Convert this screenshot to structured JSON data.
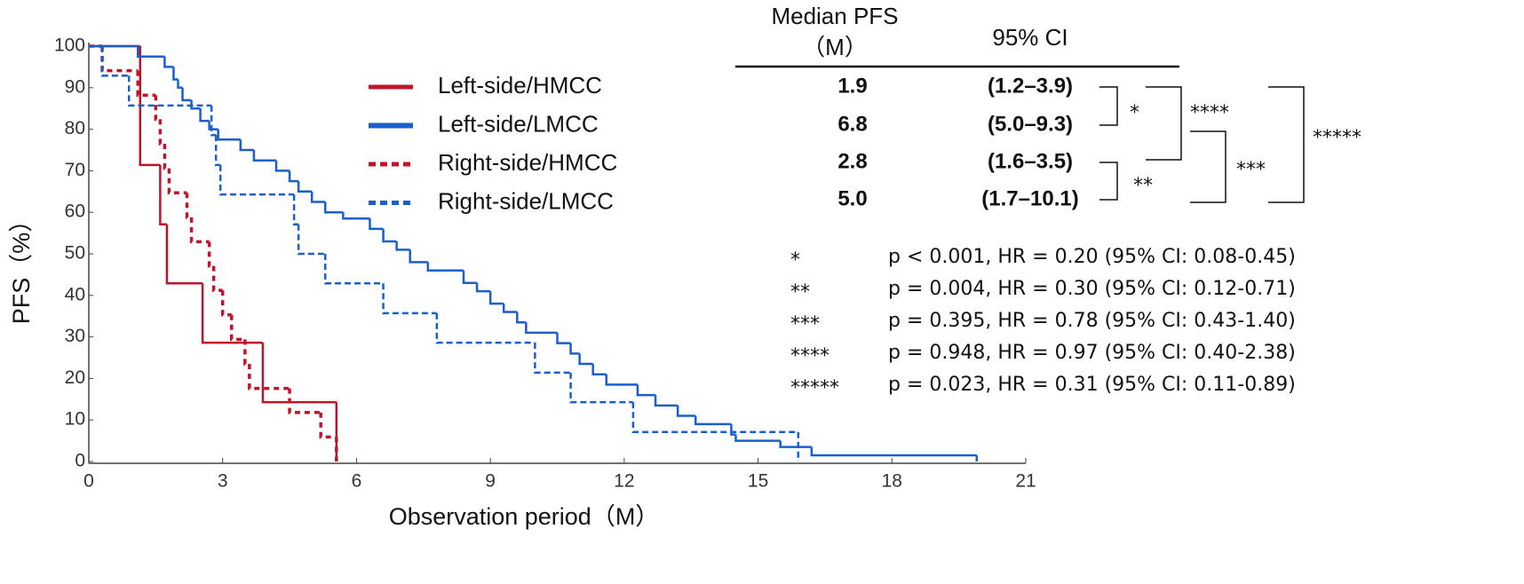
{
  "chart_data": {
    "type": "step",
    "xlabel": "Observation period（M）",
    "ylabel": "PFS（%）",
    "xlim": [
      0,
      21
    ],
    "xticks": [
      0,
      3,
      6,
      9,
      12,
      15,
      18,
      21
    ],
    "ylim": [
      0,
      100
    ],
    "yticks": [
      0,
      10,
      20,
      30,
      40,
      50,
      60,
      70,
      80,
      90,
      100
    ],
    "series": [
      {
        "name": "Left-side/HMCC",
        "color": "#c0142a",
        "style": "solid",
        "x": [
          0,
          1.15,
          1.6,
          1.75,
          2.55,
          3.9,
          5.55
        ],
        "values": [
          100,
          71.4,
          57.1,
          42.9,
          28.6,
          14.3,
          0
        ]
      },
      {
        "name": "Left-side/LMCC",
        "color": "#1a5fcc",
        "style": "solid",
        "x": [
          0,
          1.1,
          1.7,
          1.9,
          2.0,
          2.1,
          2.3,
          2.5,
          2.7,
          2.9,
          3.4,
          3.7,
          4.2,
          4.5,
          4.7,
          5.0,
          5.3,
          5.7,
          6.3,
          6.6,
          6.9,
          7.2,
          7.6,
          8.4,
          8.7,
          9.0,
          9.3,
          9.6,
          9.8,
          10.5,
          10.8,
          11.0,
          11.3,
          11.6,
          12.3,
          12.7,
          13.2,
          13.6,
          14.4,
          14.5,
          15.5,
          16.2,
          19.9
        ],
        "values": [
          100,
          97.5,
          95,
          92,
          90,
          87,
          85,
          82,
          80,
          77.5,
          75,
          72.5,
          70,
          67.5,
          65,
          62.5,
          60,
          58.5,
          56,
          53,
          51,
          48,
          46,
          43,
          41,
          38,
          36,
          33.5,
          31,
          28.5,
          26,
          23.5,
          21,
          18.5,
          16,
          13.5,
          11,
          9,
          6.5,
          5,
          3.5,
          1.5,
          0
        ]
      },
      {
        "name": "Right-side/HMCC",
        "color": "#c0142a",
        "style": "dotted",
        "x": [
          0,
          0.3,
          1.1,
          1.5,
          1.6,
          1.7,
          1.8,
          2.2,
          2.3,
          2.7,
          2.8,
          3.0,
          3.2,
          3.5,
          3.6,
          4.5,
          5.2,
          5.55
        ],
        "values": [
          100,
          94.1,
          88.2,
          82.4,
          76.5,
          70.6,
          64.7,
          58.8,
          52.9,
          47.1,
          41.2,
          35.3,
          29.4,
          23.5,
          17.6,
          11.8,
          5.9,
          0
        ]
      },
      {
        "name": "Right-side/LMCC",
        "color": "#1a5fcc",
        "style": "dashed",
        "x": [
          0,
          0.3,
          0.9,
          2.75,
          2.85,
          2.95,
          4.6,
          4.7,
          5.3,
          6.6,
          7.8,
          10.0,
          10.8,
          12.2,
          15.9
        ],
        "values": [
          100,
          92.9,
          85.7,
          78.6,
          71.4,
          64.3,
          57.1,
          50,
          42.9,
          35.7,
          28.6,
          21.4,
          14.3,
          7.1,
          0
        ]
      }
    ],
    "table": {
      "headers": [
        "Median PFS",
        "（M）",
        "95% CI"
      ],
      "rows": [
        [
          "1.9",
          "(1.2–3.9)"
        ],
        [
          "6.8",
          "(5.0–9.3)"
        ],
        [
          "2.8",
          "(1.6–3.5)"
        ],
        [
          "5.0",
          "(1.7–10.1)"
        ]
      ]
    },
    "stats": [
      {
        "stars": "*",
        "text": "p < 0.001, HR = 0.20 (95% CI: 0.08-0.45)"
      },
      {
        "stars": "**",
        "text": "p = 0.004, HR = 0.30 (95% CI: 0.12-0.71)"
      },
      {
        "stars": "***",
        "text": "p = 0.395, HR = 0.78 (95% CI: 0.43-1.40)"
      },
      {
        "stars": "****",
        "text": "p = 0.948, HR = 0.97 (95% CI: 0.40-2.38)"
      },
      {
        "stars": "*****",
        "text": "p = 0.023, HR = 0.31 (95% CI: 0.11-0.89)"
      }
    ]
  }
}
